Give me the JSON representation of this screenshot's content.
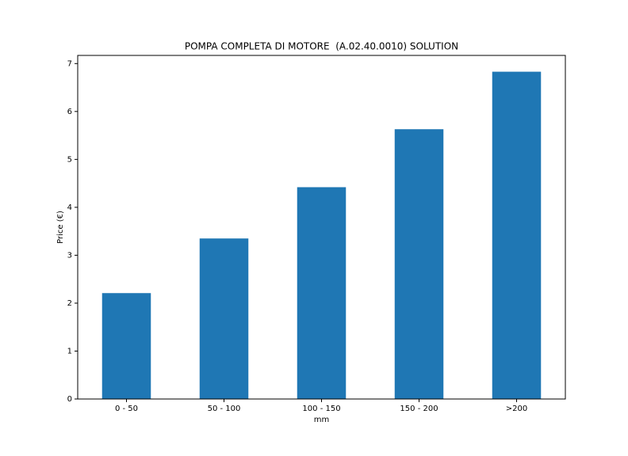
{
  "chart_data": {
    "type": "bar",
    "title": "POMPA COMPLETA DI MOTORE  (A.02.40.0010) SOLUTION",
    "x_label": "mm",
    "y_label": "Price (€)",
    "categories": [
      "0 - 50",
      "50 - 100",
      "100 - 150",
      "150 - 200",
      ">200"
    ],
    "values": [
      2.21,
      3.35,
      4.42,
      5.63,
      6.83
    ],
    "color": "#1f77b4",
    "ylim": [
      0,
      7.17
    ],
    "yticks": [
      0,
      1,
      2,
      3,
      4,
      5,
      6,
      7
    ],
    "grid": false
  }
}
